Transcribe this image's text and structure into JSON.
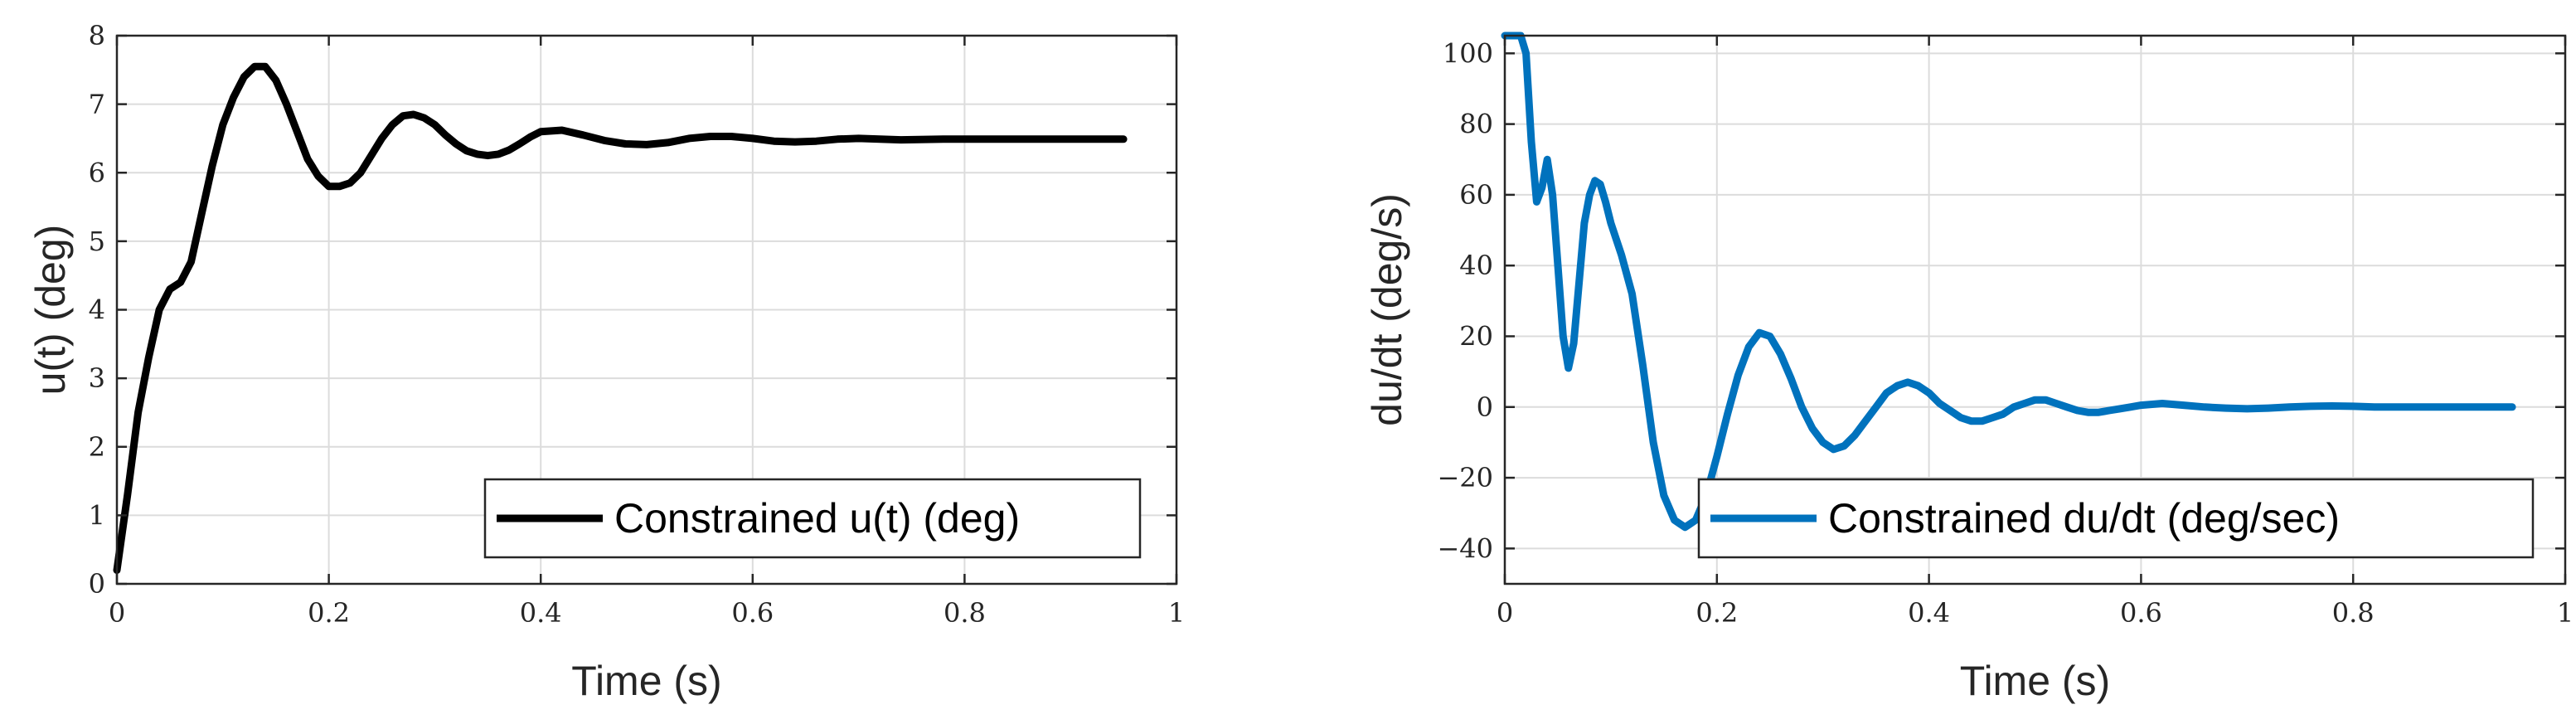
{
  "chart_data": [
    {
      "type": "line",
      "xlabel": "Time (s)",
      "ylabel": "u(t) (deg)",
      "xlim": [
        0,
        1
      ],
      "ylim": [
        0,
        8
      ],
      "xticks": [
        0,
        0.2,
        0.4,
        0.6,
        0.8,
        1
      ],
      "xtick_labels": [
        "0",
        "0.2",
        "0.4",
        "0.6",
        "0.8",
        "1"
      ],
      "yticks": [
        0,
        1,
        2,
        3,
        4,
        5,
        6,
        7,
        8
      ],
      "ytick_labels": [
        "0",
        "1",
        "2",
        "3",
        "4",
        "5",
        "6",
        "7",
        "8"
      ],
      "grid": true,
      "legend_position": "bottom-right",
      "series": [
        {
          "name": "Constrained u(t) (deg)",
          "color": "#000000",
          "x": [
            0,
            0.01,
            0.02,
            0.03,
            0.04,
            0.05,
            0.06,
            0.07,
            0.08,
            0.09,
            0.1,
            0.11,
            0.12,
            0.13,
            0.14,
            0.15,
            0.16,
            0.17,
            0.18,
            0.19,
            0.2,
            0.21,
            0.22,
            0.23,
            0.24,
            0.25,
            0.26,
            0.27,
            0.28,
            0.29,
            0.3,
            0.31,
            0.32,
            0.33,
            0.34,
            0.35,
            0.36,
            0.37,
            0.38,
            0.39,
            0.4,
            0.42,
            0.44,
            0.46,
            0.48,
            0.5,
            0.52,
            0.54,
            0.56,
            0.58,
            0.6,
            0.62,
            0.64,
            0.66,
            0.68,
            0.7,
            0.74,
            0.78,
            0.82,
            0.86,
            0.9,
            0.95
          ],
          "y": [
            0.2,
            1.3,
            2.5,
            3.3,
            4.0,
            4.3,
            4.4,
            4.7,
            5.4,
            6.1,
            6.7,
            7.1,
            7.4,
            7.55,
            7.55,
            7.35,
            7.0,
            6.6,
            6.2,
            5.95,
            5.8,
            5.8,
            5.85,
            6.0,
            6.25,
            6.5,
            6.7,
            6.83,
            6.85,
            6.8,
            6.7,
            6.55,
            6.42,
            6.32,
            6.27,
            6.25,
            6.27,
            6.33,
            6.42,
            6.52,
            6.6,
            6.62,
            6.55,
            6.47,
            6.42,
            6.41,
            6.44,
            6.5,
            6.53,
            6.53,
            6.5,
            6.46,
            6.45,
            6.46,
            6.49,
            6.5,
            6.48,
            6.49,
            6.49,
            6.49,
            6.49,
            6.49
          ]
        }
      ]
    },
    {
      "type": "line",
      "xlabel": "Time (s)",
      "ylabel": "du/dt (deg/s)",
      "xlim": [
        0,
        1
      ],
      "ylim": [
        -50,
        105
      ],
      "xticks": [
        0,
        0.2,
        0.4,
        0.6,
        0.8,
        1
      ],
      "xtick_labels": [
        "0",
        "0.2",
        "0.4",
        "0.6",
        "0.8",
        "1"
      ],
      "yticks": [
        -40,
        -20,
        0,
        20,
        40,
        60,
        80,
        100
      ],
      "ytick_labels": [
        "−40",
        "−20",
        "0",
        "20",
        "40",
        "60",
        "80",
        "100"
      ],
      "grid": true,
      "legend_position": "bottom-right",
      "series": [
        {
          "name": "Constrained du/dt (deg/sec)",
          "color": "#0072BD",
          "x": [
            0,
            0.005,
            0.01,
            0.015,
            0.02,
            0.025,
            0.03,
            0.035,
            0.04,
            0.045,
            0.05,
            0.055,
            0.06,
            0.065,
            0.07,
            0.075,
            0.08,
            0.085,
            0.09,
            0.095,
            0.1,
            0.11,
            0.12,
            0.13,
            0.14,
            0.15,
            0.16,
            0.17,
            0.18,
            0.19,
            0.2,
            0.21,
            0.22,
            0.23,
            0.24,
            0.25,
            0.26,
            0.27,
            0.28,
            0.29,
            0.3,
            0.31,
            0.32,
            0.33,
            0.34,
            0.35,
            0.36,
            0.37,
            0.38,
            0.39,
            0.4,
            0.41,
            0.42,
            0.43,
            0.44,
            0.45,
            0.46,
            0.47,
            0.48,
            0.49,
            0.5,
            0.51,
            0.52,
            0.53,
            0.54,
            0.55,
            0.56,
            0.57,
            0.58,
            0.59,
            0.6,
            0.62,
            0.64,
            0.66,
            0.68,
            0.7,
            0.72,
            0.74,
            0.76,
            0.78,
            0.8,
            0.82,
            0.84,
            0.86,
            0.88,
            0.9,
            0.92,
            0.95
          ],
          "y": [
            105,
            105,
            105,
            105,
            100,
            75,
            58,
            62,
            70,
            60,
            40,
            20,
            11,
            18,
            35,
            52,
            60,
            64,
            63,
            58,
            52,
            43,
            32,
            12,
            -10,
            -25,
            -32,
            -34,
            -32,
            -25,
            -14,
            -2,
            9,
            17,
            21,
            20,
            15,
            8,
            0,
            -6,
            -10,
            -12,
            -11,
            -8,
            -4,
            0,
            4,
            6,
            7,
            6,
            4,
            1,
            -1,
            -3,
            -4,
            -4,
            -3,
            -2,
            0,
            1,
            2,
            2,
            1,
            0,
            -1,
            -1.5,
            -1.5,
            -1,
            -0.5,
            0,
            0.5,
            1,
            0.5,
            0,
            -0.3,
            -0.5,
            -0.3,
            0,
            0.2,
            0.3,
            0.2,
            0,
            0,
            0,
            0,
            0,
            0,
            0
          ]
        }
      ]
    }
  ]
}
